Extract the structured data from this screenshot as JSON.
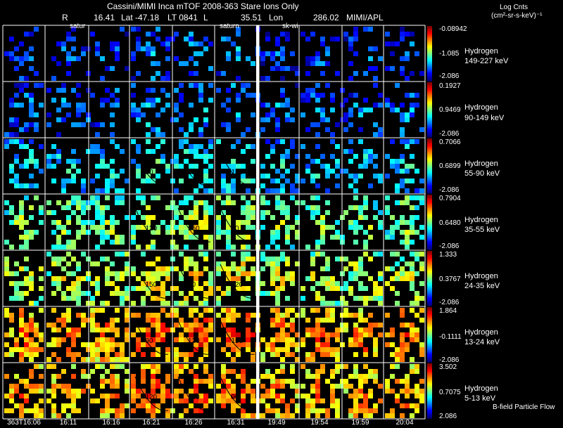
{
  "header": {
    "title": "Cassini/MIMI Inca mTOF  2008-363   Stare    Ions Only",
    "line2": {
      "r_label": "R",
      "r_value": "16.41",
      "lat": "Lat -47.18",
      "lt": "LT 0841",
      "l_label": "L",
      "l_value": "35.51",
      "lon_label": "Lon",
      "lon_value": "286.02",
      "org": "MIMI/APL"
    },
    "units_title": "Log Cnts",
    "units": "(cm²-sr-s-keV)⁻¹"
  },
  "panel_labels": [
    "satur",
    "saturn",
    "sk-wi"
  ],
  "footer_label": "B-field Particle Flow",
  "colors": {
    "background": "#000000",
    "grid": "#ffffff",
    "separator": "#ffffff"
  },
  "chart_data": {
    "type": "heatmap",
    "title": "Cassini/MIMI Inca mTOF  2008-363   Stare    Ions Only",
    "time_labels": [
      "363T16:06",
      "16:11",
      "16:16",
      "16:21",
      "16:26",
      "16:31",
      "19:49",
      "19:54",
      "19:59",
      "20:04"
    ],
    "rows": [
      {
        "species": "Hydrogen",
        "energy": "149-227 keV",
        "cb_max": "-0.08942",
        "cb_mid": "-1.085",
        "cb_min": "-2.086",
        "level": 0.08
      },
      {
        "species": "Hydrogen",
        "energy": "90-149 keV",
        "cb_max": "0.1927",
        "cb_mid": "0.9469",
        "cb_min": "-2.086",
        "level": 0.12
      },
      {
        "species": "Hydrogen",
        "energy": "55-90 keV",
        "cb_max": "0.7066",
        "cb_mid": "0.6899",
        "cb_min": "-2.086",
        "level": 0.22
      },
      {
        "species": "Hydrogen",
        "energy": "35-55 keV",
        "cb_max": "0.7904",
        "cb_mid": "0.6480",
        "cb_min": "-2.086",
        "level": 0.38
      },
      {
        "species": "Hydrogen",
        "energy": "24-35 keV",
        "cb_max": "1.333",
        "cb_mid": "0.3767",
        "cb_min": "-2.086",
        "level": 0.45
      },
      {
        "species": "Hydrogen",
        "energy": "13-24 keV",
        "cb_max": "1.864",
        "cb_mid": "-0.1111",
        "cb_min": "-2.086",
        "level": 0.62
      },
      {
        "species": "Hydrogen",
        "energy": "5-13 keV",
        "cb_max": "3.502",
        "cb_mid": "0.7075",
        "cb_min": "2.086",
        "level": 0.6
      }
    ],
    "contour_labels": [
      "120",
      "150",
      "90"
    ]
  }
}
